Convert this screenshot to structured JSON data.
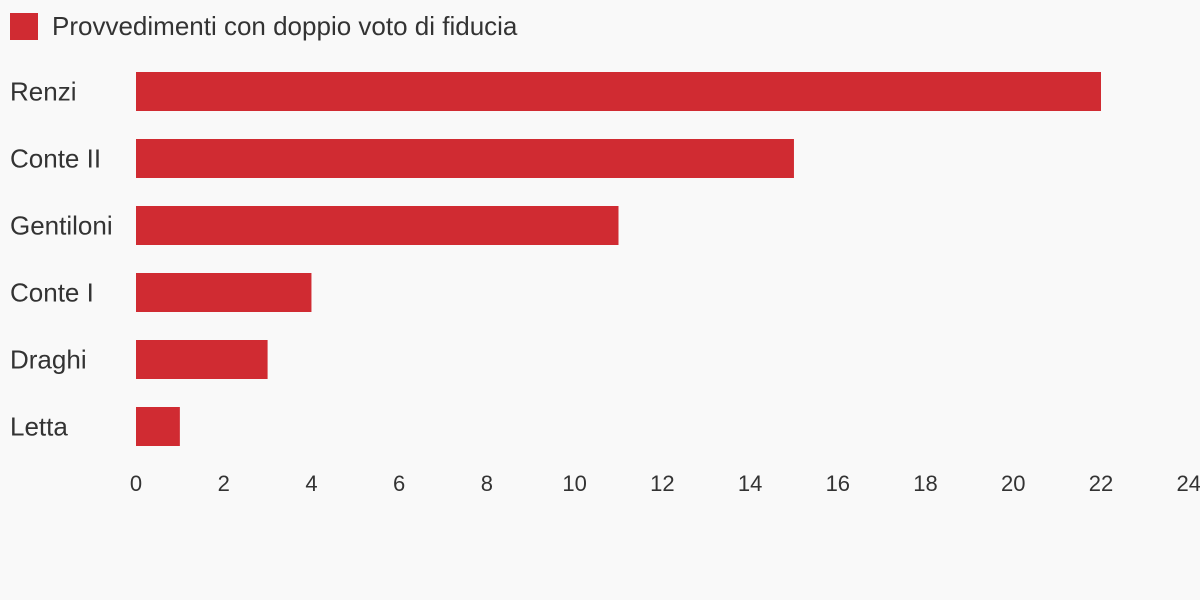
{
  "chart_data": {
    "type": "bar",
    "orientation": "horizontal",
    "categories": [
      "Renzi",
      "Conte II",
      "Gentiloni",
      "Conte I",
      "Draghi",
      "Letta"
    ],
    "series": [
      {
        "name": "Provvedimenti con doppio voto di fiducia",
        "color": "#d02b32",
        "values": [
          22,
          15,
          11,
          4,
          3,
          1
        ]
      }
    ],
    "xlim": [
      0,
      24
    ],
    "xticks": [
      "0",
      "2",
      "4",
      "6",
      "8",
      "10",
      "12",
      "14",
      "16",
      "18",
      "20",
      "22",
      "24"
    ],
    "title": "",
    "xlabel": "",
    "ylabel": "",
    "legend_position": "top-left",
    "grid": false
  }
}
